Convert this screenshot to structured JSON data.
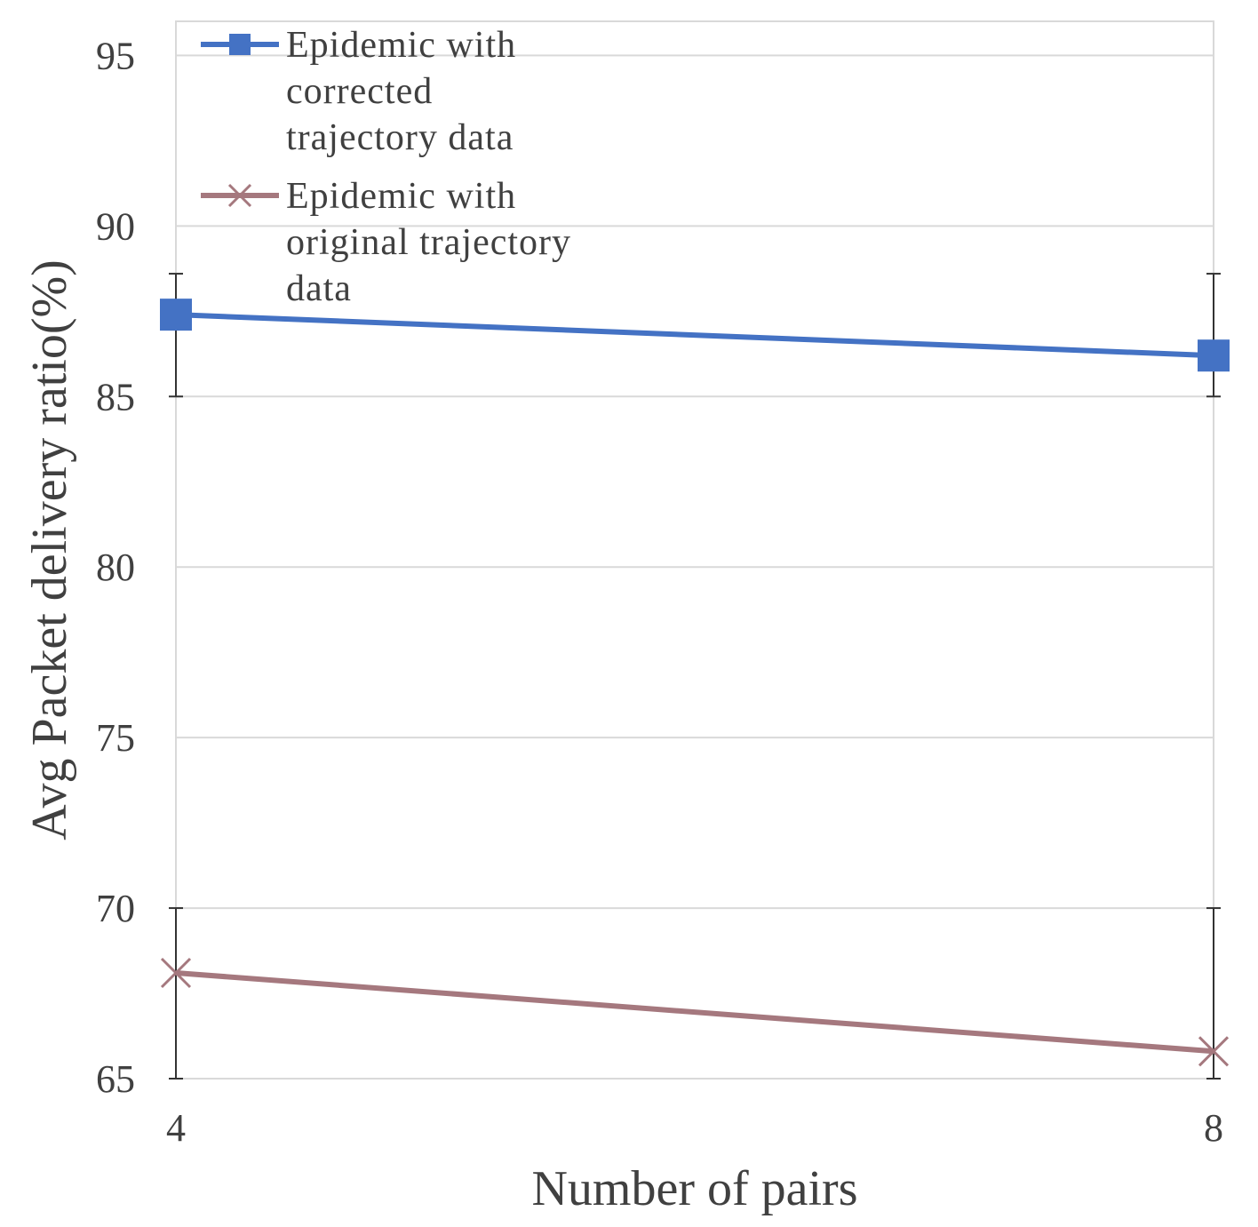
{
  "chart_data": {
    "type": "line",
    "title": "",
    "xlabel": "Number of pairs",
    "ylabel": "Avg Packet delivery ratio(%)",
    "x": [
      4,
      8
    ],
    "x_tick_labels": [
      "4",
      "8"
    ],
    "ylim": [
      65,
      96
    ],
    "y_ticks": [
      65,
      70,
      75,
      80,
      85,
      90,
      95
    ],
    "grid": true,
    "legend_position": "top-left",
    "series": [
      {
        "name": "Epidemic with corrected trajectory data",
        "legend_lines": [
          "Epidemic with",
          "corrected",
          "trajectory data"
        ],
        "values": [
          87.4,
          86.2
        ],
        "error_low": [
          85.0,
          85.0
        ],
        "error_high": [
          88.6,
          88.6
        ],
        "color": "#4472C4",
        "marker": "square"
      },
      {
        "name": "Epidemic with original trajectory data",
        "legend_lines": [
          "Epidemic with",
          "original trajectory",
          "data"
        ],
        "values": [
          68.1,
          65.8
        ],
        "error_low": [
          65.0,
          65.0
        ],
        "error_high": [
          70.0,
          70.0
        ],
        "color": "#A5787E",
        "marker": "x"
      }
    ]
  }
}
